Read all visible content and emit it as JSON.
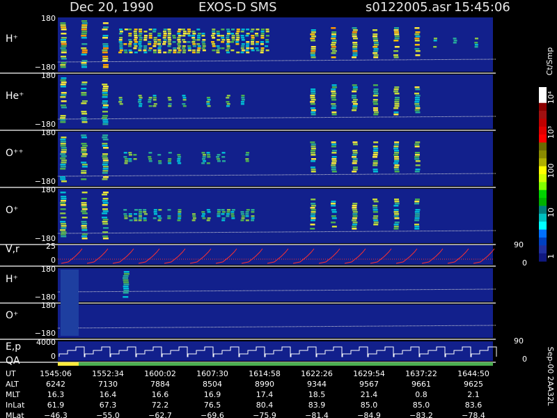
{
  "header": {
    "date": "Dec 20, 1990",
    "instrument": "EXOS-D SMS",
    "file": "s0122005.asr",
    "time": "15:45:06"
  },
  "panels": [
    {
      "label": "H⁺",
      "top": "180",
      "bottom": "−180"
    },
    {
      "label": "He⁺",
      "top": "180",
      "bottom": "−180"
    },
    {
      "label": "O⁺⁺",
      "top": "180",
      "bottom": "−180"
    },
    {
      "label": "O⁺",
      "top": "180",
      "bottom": "−180"
    },
    {
      "label": "V,r",
      "top": "25",
      "bottom": "0",
      "right_top": "90",
      "right_bottom": "0"
    },
    {
      "label": "H⁺",
      "top": "180",
      "bottom": "−180"
    },
    {
      "label": "O⁺",
      "top": "180",
      "bottom": "−180"
    },
    {
      "label": "E,p",
      "label2": "QA",
      "top": "4000",
      "bottom": "0",
      "right_top": "90",
      "right_bottom": "0"
    }
  ],
  "colorbar": {
    "unit": "Ct/Smp",
    "labels": [
      "10⁴",
      "10³",
      "100",
      "10",
      "1"
    ]
  },
  "table": {
    "rows": [
      {
        "name": "UT",
        "values": [
          "1545:06",
          "1552:34",
          "1600:02",
          "1607:30",
          "1614:58",
          "1622:26",
          "1629:54",
          "1637:22",
          "1644:50"
        ]
      },
      {
        "name": "ALT",
        "values": [
          "6242",
          "7130",
          "7884",
          "8504",
          "8990",
          "9344",
          "9567",
          "9661",
          "9625"
        ]
      },
      {
        "name": "MLT",
        "values": [
          "16.3",
          "16.4",
          "16.6",
          "16.9",
          "17.4",
          "18.5",
          "21.4",
          "0.8",
          "2.1"
        ]
      },
      {
        "name": "InLat",
        "values": [
          "61.9",
          "67.3",
          "72.2",
          "76.5",
          "80.4",
          "83.9",
          "85.0",
          "85.0",
          "83.6"
        ]
      },
      {
        "name": "MLat",
        "values": [
          "−46.3",
          "−55.0",
          "−62.7",
          "−69.6",
          "−75.9",
          "−81.4",
          "−84.9",
          "−83.2",
          "−78.4"
        ]
      }
    ]
  },
  "footer": "Sep-00 2AA32L"
}
